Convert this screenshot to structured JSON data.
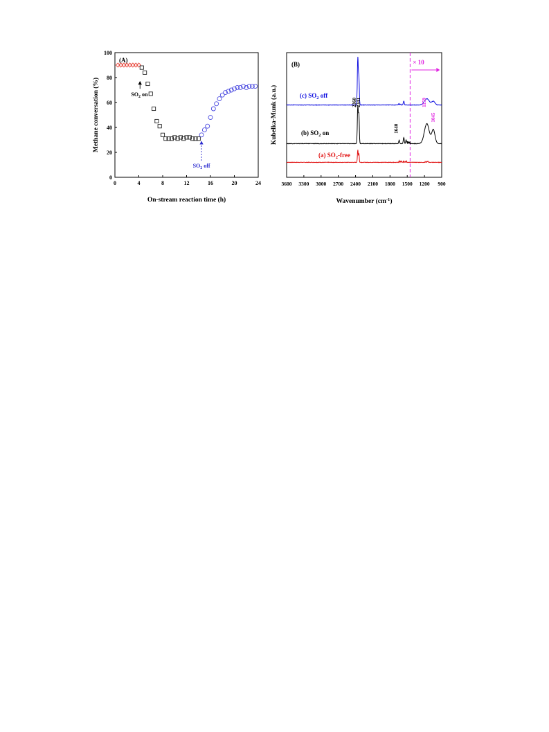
{
  "chart_data": [
    {
      "panel": "(A)",
      "type": "scatter",
      "xlabel": "On-stream reaction time (h)",
      "ylabel": "Methane conversation (%)",
      "xlim": [
        0,
        24
      ],
      "ylim": [
        0,
        100
      ],
      "xticks": [
        0,
        4,
        8,
        12,
        16,
        20,
        24
      ],
      "yticks": [
        0,
        20,
        40,
        60,
        80,
        100
      ],
      "grid": false,
      "series": [
        {
          "marker": "diamond",
          "color": "#e8473c",
          "x": [
            0.5,
            1.0,
            1.5,
            2.0,
            2.5,
            3.0,
            3.5,
            4.0
          ],
          "y": [
            90,
            90,
            90,
            90,
            90,
            90,
            90,
            90
          ]
        },
        {
          "marker": "square",
          "color": "#222222",
          "x": [
            4.5,
            5.0,
            5.5,
            6.0,
            6.5,
            7.0,
            7.5,
            8.0,
            8.5,
            9.0,
            9.5,
            10.0,
            10.5,
            11.0,
            11.5,
            12.0,
            12.5,
            13.0,
            13.5,
            14.0
          ],
          "y": [
            88,
            84,
            75,
            67,
            55,
            45,
            41,
            34,
            31,
            31,
            31,
            32,
            31,
            32,
            31,
            32,
            32,
            31,
            31,
            31
          ]
        },
        {
          "marker": "circle",
          "color": "#4a4ae0",
          "x": [
            14.5,
            15.0,
            15.5,
            16.0,
            16.5,
            17.0,
            17.5,
            18.0,
            18.5,
            19.0,
            19.5,
            20.0,
            20.5,
            21.0,
            21.5,
            22.0,
            22.5,
            23.0,
            23.5
          ],
          "y": [
            34,
            38,
            41,
            48,
            55,
            59,
            63,
            66,
            68,
            69,
            70,
            71,
            72,
            72,
            73,
            72,
            73,
            73,
            73
          ]
        }
      ],
      "annotations": [
        {
          "text_main": "SO",
          "text_sub": "2",
          "text_tail": " on",
          "x": 4.1,
          "y": 66,
          "arrow_to": [
            4.2,
            78
          ],
          "color": "#000000"
        },
        {
          "text_main": "SO",
          "text_sub": "2",
          "text_tail": " off",
          "x": 14.5,
          "y": 10,
          "arrow_to": [
            14.5,
            30
          ],
          "color": "#2a2acf"
        }
      ]
    },
    {
      "panel": "(B)",
      "type": "line",
      "xlabel_main": "Wavenumber (cm",
      "xlabel_sup": "-1",
      "xlabel_tail": ")",
      "ylabel": "Kubelka-Munk (a.u.)",
      "xlim": [
        3600,
        900
      ],
      "xticks": [
        3600,
        3300,
        3000,
        2700,
        2400,
        2100,
        1800,
        1500,
        1200,
        900
      ],
      "grid": false,
      "multiplier_label": "× 10",
      "multiplier_color": "#e020e0",
      "divider_x": 1450,
      "series": [
        {
          "name_pre": "(a) SO",
          "name_sub": "2",
          "name_post": "-free",
          "color": "#e01010",
          "baseline": 0.12,
          "peaks": [
            [
              2360,
              0.1,
              10
            ],
            [
              2341,
              0.07,
              8
            ]
          ],
          "noise": [
            [
              1540,
              0.015
            ],
            [
              1620,
              0.01
            ],
            [
              1160,
              0.008
            ]
          ]
        },
        {
          "name_pre": "(b) SO",
          "name_sub": "2",
          "name_post": " on",
          "color": "#000000",
          "baseline": 0.27,
          "peaks": [
            [
              2360,
              0.3,
              12
            ],
            [
              2341,
              0.22,
              10
            ],
            [
              1640,
              0.03,
              10
            ],
            [
              1560,
              0.05,
              12
            ],
            [
              1520,
              0.03,
              10
            ],
            [
              1159,
              0.16,
              60
            ],
            [
              1045,
              0.11,
              40
            ]
          ],
          "noise": [
            [
              1480,
              0.02
            ]
          ]
        },
        {
          "name_pre": "(c) SO",
          "name_sub": "2",
          "name_post": " off",
          "color": "#1010e0",
          "baseline": 0.58,
          "peaks": [
            [
              2360,
              0.38,
              12
            ],
            [
              2341,
              0.2,
              10
            ],
            [
              1560,
              0.03,
              12
            ],
            [
              1159,
              0.05,
              60
            ],
            [
              1045,
              0.03,
              40
            ]
          ],
          "noise": [
            [
              1640,
              0.01
            ]
          ]
        }
      ],
      "peak_labels": [
        {
          "text": "2360",
          "x": 2395,
          "color": "#000000"
        },
        {
          "text": "2341",
          "x": 2320,
          "color": "#000000"
        },
        {
          "text": "1640",
          "x": 1665,
          "color": "#000000"
        },
        {
          "text": "1159",
          "x": 1175,
          "color": "#e020e0"
        },
        {
          "text": "1045",
          "x": 1020,
          "color": "#e020e0"
        }
      ]
    }
  ]
}
